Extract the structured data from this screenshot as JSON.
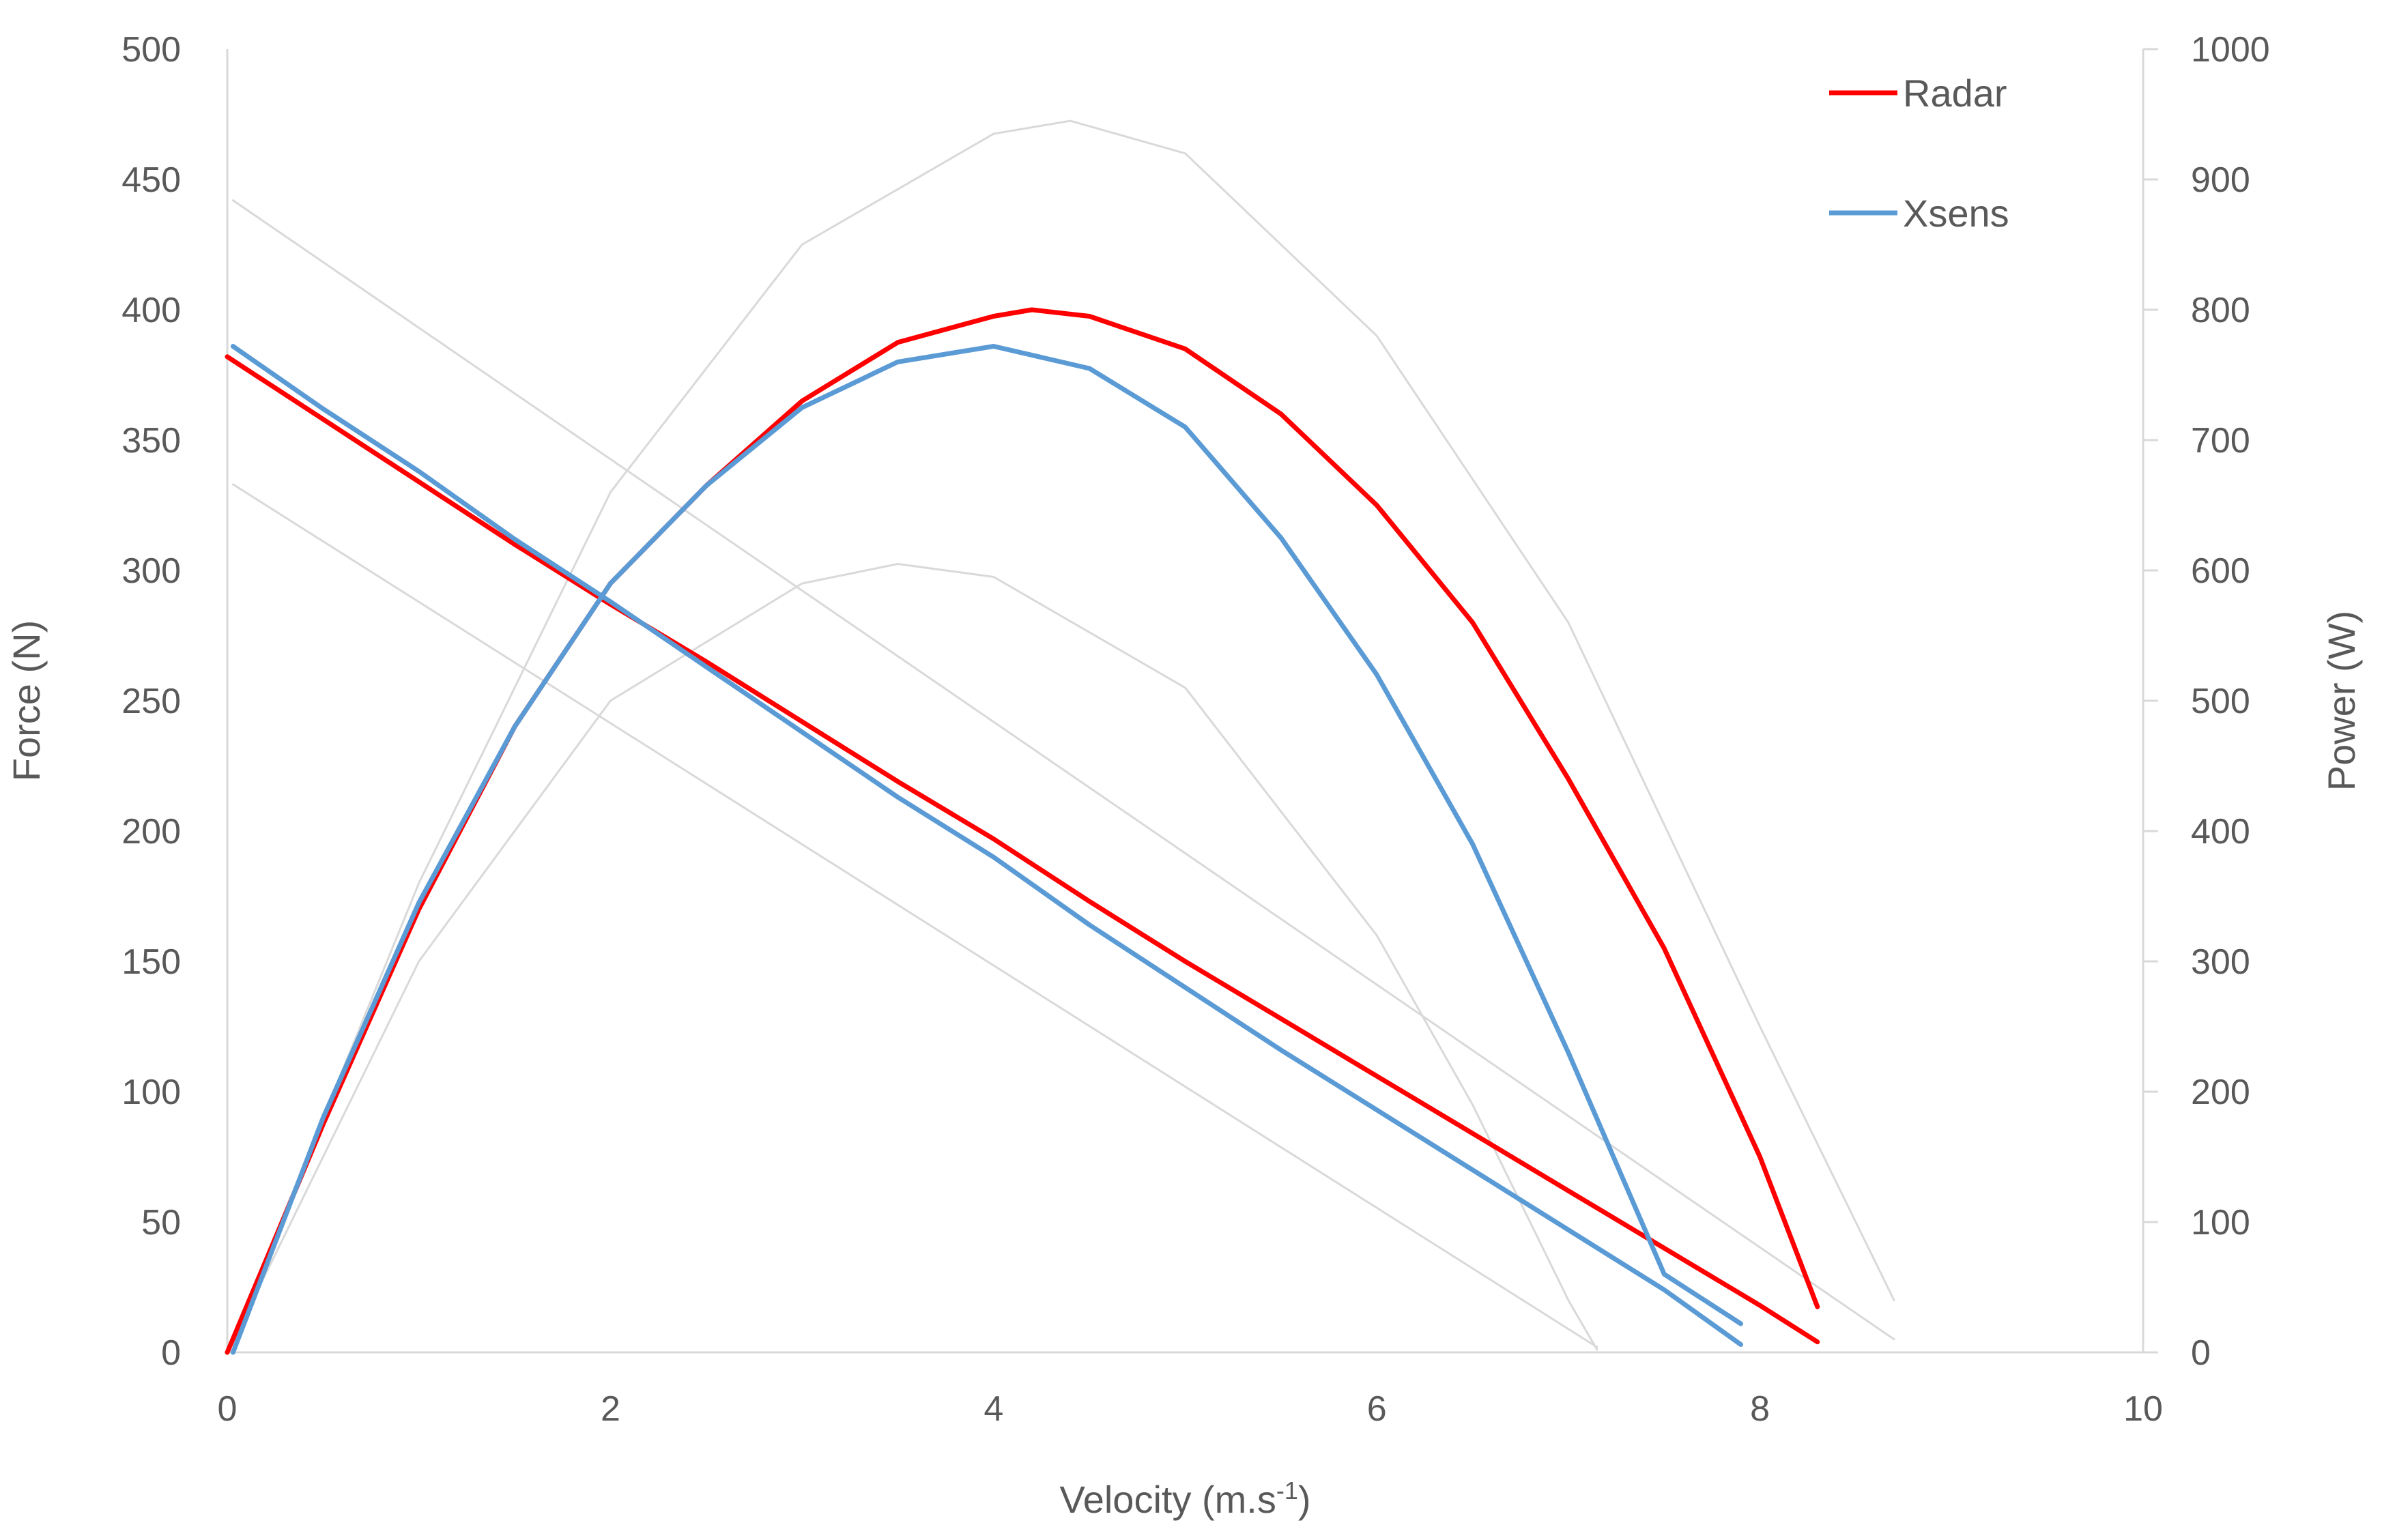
{
  "chart_data": {
    "type": "line",
    "xlabel": "Velocity (m.s",
    "xlabel_sup": "-1",
    "xlabel_suffix": ")",
    "ylabel_left": "Force (N)",
    "ylabel_right": "Power (W)",
    "xlim": [
      0,
      10
    ],
    "ylim_left": [
      0,
      500
    ],
    "ylim_right": [
      0,
      1000
    ],
    "x_ticks": [
      "0",
      "2",
      "4",
      "6",
      "8",
      "10"
    ],
    "y_left_ticks": [
      "0",
      "50",
      "100",
      "150",
      "200",
      "250",
      "300",
      "350",
      "400",
      "450",
      "500"
    ],
    "y_right_ticks": [
      "0",
      "100",
      "200",
      "300",
      "400",
      "500",
      "600",
      "700",
      "800",
      "900",
      "1000"
    ],
    "grid": false,
    "legend": {
      "placement": "top-right",
      "entries": [
        "Radar",
        "Xsens"
      ]
    },
    "colors": {
      "Radar": "#ff0000",
      "Xsens": "#5b9bd5",
      "reference": "#d9d9d9",
      "axis": "#d9d9d9"
    },
    "series": [
      {
        "name": "Radar",
        "kind": "force",
        "axis": "left",
        "x": [
          0,
          0.5,
          1,
          1.5,
          2,
          2.5,
          3,
          3.5,
          4,
          4.5,
          5,
          5.5,
          6,
          6.5,
          7,
          7.5,
          8,
          8.3
        ],
        "values": [
          382,
          358,
          334,
          310,
          287,
          265,
          242,
          219,
          197,
          173,
          150,
          128,
          106,
          84,
          62,
          40,
          18,
          4
        ]
      },
      {
        "name": "Radar",
        "kind": "power",
        "axis": "right",
        "x": [
          0,
          0.5,
          1,
          1.5,
          2,
          2.5,
          3,
          3.5,
          4,
          4.2,
          4.5,
          5,
          5.5,
          6,
          6.5,
          7,
          7.5,
          8,
          8.3
        ],
        "values": [
          0,
          175,
          340,
          480,
          590,
          665,
          730,
          775,
          795,
          800,
          795,
          770,
          720,
          650,
          560,
          440,
          310,
          150,
          35
        ]
      },
      {
        "name": "Xsens",
        "kind": "force",
        "axis": "left",
        "x": [
          0.03,
          0.5,
          1,
          1.5,
          2,
          2.5,
          3,
          3.5,
          4,
          4.5,
          5,
          5.5,
          6,
          6.5,
          7,
          7.5,
          7.9
        ],
        "values": [
          386,
          362,
          338,
          312,
          288,
          263,
          238,
          213,
          190,
          164,
          140,
          116,
          93,
          70,
          47,
          24,
          3
        ]
      },
      {
        "name": "Xsens",
        "kind": "power",
        "axis": "right",
        "x": [
          0.03,
          0.5,
          1,
          1.5,
          2,
          2.5,
          3,
          3.5,
          4,
          4.5,
          5,
          5.5,
          6,
          6.5,
          7,
          7.5,
          7.9
        ],
        "values": [
          0,
          180,
          345,
          480,
          590,
          665,
          725,
          760,
          772,
          755,
          710,
          625,
          520,
          390,
          230,
          60,
          22
        ]
      },
      {
        "kind": "reference-force",
        "axis": "left",
        "x": [
          0.03,
          8.7
        ],
        "values": [
          442,
          5
        ]
      },
      {
        "kind": "reference-force",
        "axis": "left",
        "x": [
          0.03,
          7.15
        ],
        "values": [
          333,
          2
        ]
      },
      {
        "kind": "reference-power",
        "axis": "right",
        "x": [
          0,
          1,
          2,
          3,
          4,
          4.4,
          5,
          6,
          7,
          8,
          8.7
        ],
        "values": [
          0,
          360,
          660,
          850,
          935,
          945,
          920,
          780,
          560,
          250,
          40
        ]
      },
      {
        "kind": "reference-power",
        "axis": "right",
        "x": [
          0,
          1,
          2,
          3,
          3.5,
          4,
          5,
          6,
          6.5,
          7,
          7.15
        ],
        "values": [
          0,
          300,
          500,
          590,
          605,
          595,
          510,
          320,
          190,
          40,
          2
        ]
      }
    ]
  }
}
